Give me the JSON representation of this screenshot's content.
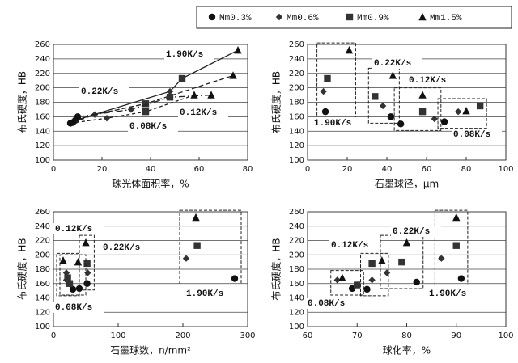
{
  "legend": [
    {
      "name": "Mm0.3%",
      "marker": "circle"
    },
    {
      "name": "Mm0.6%",
      "marker": "diamond"
    },
    {
      "name": "Mm0.9%",
      "marker": "square"
    },
    {
      "name": "Mm1.5%",
      "marker": "triangle"
    }
  ],
  "chart_data": [
    {
      "type": "scatter",
      "xlabel": "珠光体面积率，%",
      "ylabel": "布氏硬度，HB",
      "xlim": [
        0,
        80
      ],
      "ylim": [
        100,
        260
      ],
      "xticks": [
        0,
        20,
        40,
        60,
        80
      ],
      "yticks": [
        100,
        120,
        140,
        160,
        180,
        200,
        220,
        240,
        260
      ],
      "grid": true,
      "lines": true,
      "boxes": false,
      "series": [
        {
          "name": "1.90K/s",
          "x": [
            9,
            48,
            53,
            76
          ],
          "values": [
            155,
            195,
            213,
            252
          ]
        },
        {
          "name": "0.22K/s",
          "x": [
            8,
            17,
            38,
            74
          ],
          "values": [
            152,
            163,
            178,
            217
          ]
        },
        {
          "name": "0.12K/s",
          "x": [
            10,
            32,
            48,
            65
          ],
          "values": [
            160,
            170,
            187,
            190
          ]
        },
        {
          "name": "0.08K/s",
          "x": [
            7,
            22,
            38,
            58
          ],
          "values": [
            151,
            158,
            167,
            190
          ]
        }
      ]
    },
    {
      "type": "scatter",
      "xlabel": "石墨球径，μm",
      "ylabel": "布氏硬度，HB",
      "xlim": [
        0,
        100
      ],
      "ylim": [
        100,
        260
      ],
      "xticks": [
        0,
        20,
        40,
        60,
        80,
        100
      ],
      "yticks": [
        100,
        120,
        140,
        160,
        180,
        200,
        220,
        240,
        260
      ],
      "grid": true,
      "lines": false,
      "boxes": true,
      "series": [
        {
          "name": "1.90K/s",
          "x": [
            9,
            8,
            10,
            21
          ],
          "values": [
            167,
            195,
            213,
            252
          ]
        },
        {
          "name": "0.22K/s",
          "x": [
            42,
            38,
            34,
            43
          ],
          "values": [
            160,
            175,
            188,
            217
          ]
        },
        {
          "name": "0.12K/s",
          "x": [
            47,
            64,
            58,
            58
          ],
          "values": [
            150,
            157,
            167,
            190
          ]
        },
        {
          "name": "0.08K/s",
          "x": [
            69,
            76,
            87,
            80
          ],
          "values": [
            153,
            167,
            175,
            168
          ]
        }
      ]
    },
    {
      "type": "scatter",
      "xlabel": "石墨球数，n/mm²",
      "ylabel": "布氏硬度，HB",
      "xlim": [
        0,
        300
      ],
      "ylim": [
        100,
        260
      ],
      "xticks": [
        0,
        100,
        200,
        300
      ],
      "yticks": [
        100,
        120,
        140,
        160,
        180,
        200,
        220,
        240,
        260
      ],
      "grid": true,
      "lines": false,
      "boxes": true,
      "series": [
        {
          "name": "1.90K/s",
          "x": [
            280,
            205,
            222,
            220
          ],
          "values": [
            167,
            195,
            213,
            252
          ]
        },
        {
          "name": "0.22K/s",
          "x": [
            52,
            53,
            52,
            50
          ],
          "values": [
            160,
            175,
            188,
            217
          ]
        },
        {
          "name": "0.12K/s",
          "x": [
            40,
            20,
            22,
            38
          ],
          "values": [
            153,
            175,
            168,
            190
          ]
        },
        {
          "name": "0.08K/s",
          "x": [
            30,
            20,
            25,
            15
          ],
          "values": [
            152,
            165,
            160,
            192
          ]
        }
      ]
    },
    {
      "type": "scatter",
      "xlabel": "球化率，%",
      "ylabel": "布氏硬度，HB",
      "xlim": [
        60,
        100
      ],
      "ylim": [
        100,
        260
      ],
      "xticks": [
        60,
        70,
        80,
        90,
        100
      ],
      "yticks": [
        100,
        120,
        140,
        160,
        180,
        200,
        220,
        240,
        260
      ],
      "grid": true,
      "lines": false,
      "boxes": true,
      "series": [
        {
          "name": "1.90K/s",
          "x": [
            91,
            87,
            90,
            90
          ],
          "values": [
            167,
            195,
            213,
            252
          ]
        },
        {
          "name": "0.22K/s",
          "x": [
            82,
            76,
            79,
            80
          ],
          "values": [
            162,
            175,
            190,
            217
          ]
        },
        {
          "name": "0.12K/s",
          "x": [
            72,
            73,
            73,
            75
          ],
          "values": [
            152,
            165,
            188,
            192
          ]
        },
        {
          "name": "0.08K/s",
          "x": [
            69,
            66,
            70,
            67
          ],
          "values": [
            153,
            165,
            158,
            168
          ]
        }
      ]
    }
  ]
}
